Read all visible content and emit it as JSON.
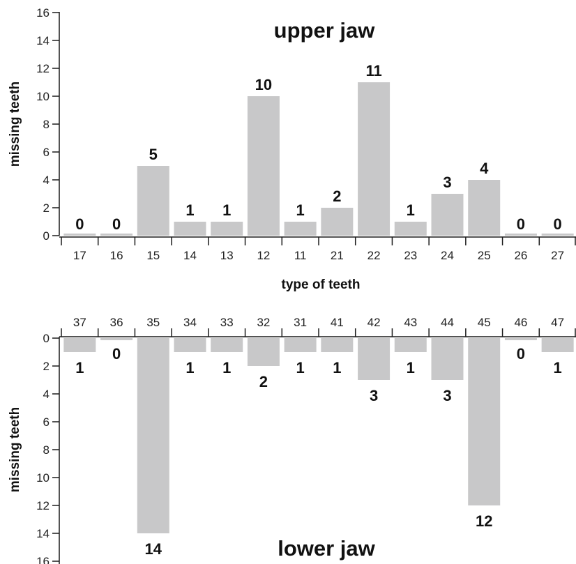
{
  "chart_data": [
    {
      "type": "bar",
      "title": "upper jaw",
      "xlabel": "type of teeth",
      "ylabel": "missing teeth",
      "categories": [
        "17",
        "16",
        "15",
        "14",
        "13",
        "12",
        "11",
        "21",
        "22",
        "23",
        "24",
        "25",
        "26",
        "27"
      ],
      "values": [
        0,
        0,
        5,
        1,
        1,
        10,
        1,
        2,
        11,
        1,
        3,
        4,
        0,
        0
      ],
      "ylim": [
        0,
        16
      ],
      "yticks": [
        0,
        2,
        4,
        6,
        8,
        10,
        12,
        14,
        16
      ],
      "colors": {
        "bar": "#c8c8c9"
      },
      "grid": false
    },
    {
      "type": "bar",
      "title": "lower jaw",
      "xlabel": "",
      "ylabel": "missing teeth",
      "categories": [
        "37",
        "36",
        "35",
        "34",
        "33",
        "32",
        "31",
        "41",
        "42",
        "43",
        "44",
        "45",
        "46",
        "47"
      ],
      "values": [
        1,
        0,
        14,
        1,
        1,
        2,
        1,
        1,
        3,
        1,
        3,
        12,
        0,
        1
      ],
      "ylim": [
        0,
        16
      ],
      "yticks": [
        0,
        2,
        4,
        6,
        8,
        10,
        12,
        14,
        16
      ],
      "y_axis_inverted": true,
      "category_axis_position": "top",
      "colors": {
        "bar": "#c8c8c9"
      },
      "grid": false
    }
  ]
}
